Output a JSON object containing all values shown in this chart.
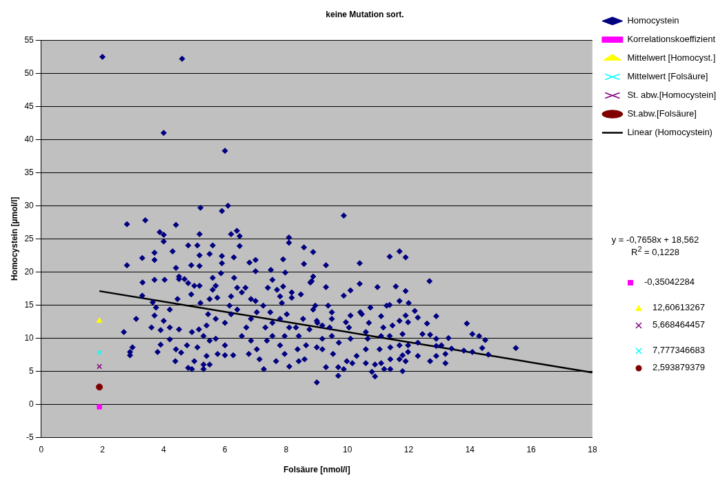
{
  "chart_data": {
    "type": "scatter",
    "title": "keine Mutation sort.",
    "xlabel": "Folsäure [nmol/l]",
    "ylabel": "Homocystein [µmol/l]",
    "xlim": [
      0,
      18
    ],
    "xticks": [
      0,
      2,
      4,
      6,
      8,
      10,
      12,
      14,
      16,
      18
    ],
    "ylim": [
      -5,
      55
    ],
    "yticks": [
      -5,
      0,
      5,
      10,
      15,
      20,
      25,
      30,
      35,
      40,
      45,
      50,
      55
    ],
    "grid": "y",
    "legend": "top right",
    "annotations": [
      "y = -0,7658x + 18,562",
      "R$^{2}$ = 0,1228",
      "-0,35042284",
      "12,60613267",
      "5,668464457",
      "7,777346683",
      "2,593879379"
    ],
    "series": [
      {
        "name": "Homocystein",
        "color": "#000080",
        "marker": "diamond",
        "x": [
          2.0,
          4.6,
          4.0,
          6.0,
          5.2,
          6.1,
          5.9,
          2.8,
          3.4,
          4.4,
          9.88,
          3.87,
          4.0,
          4.0,
          5.17,
          6.2,
          6.39,
          6.48,
          8.09,
          8.09,
          2.8,
          3.3,
          3.7,
          3.7,
          4.29,
          4.8,
          5.1,
          5.6,
          5.17,
          5.5,
          5.9,
          6.29,
          6.48,
          4.9,
          5.17,
          5.9,
          7.0,
          6.8,
          8.58,
          8.88,
          7.9,
          8.58,
          3.31,
          4.4,
          3.7,
          4.03,
          5.87,
          7.0,
          7.5,
          7.97,
          8.83,
          5.6,
          6.3,
          7.55,
          4.5,
          2.7,
          3.1,
          2.98,
          2.9,
          2.9,
          3.3,
          3.64,
          3.75,
          3.7,
          3.6,
          3.9,
          4.0,
          3.8,
          3.9,
          4.2,
          4.38,
          4.4,
          4.57,
          4.8,
          4.92,
          5.0,
          5.3,
          5.3,
          5.5,
          5.4,
          5.1,
          4.76,
          4.5,
          4.2,
          4.2,
          4.45,
          4.5,
          4.68,
          4.8,
          5.0,
          5.17,
          4.9,
          5.2,
          5.5,
          5.7,
          5.6,
          5.75,
          5.45,
          5.7,
          5.4,
          5.15,
          4.92,
          5.3,
          5.7,
          5.5,
          6.0,
          5.76,
          6.0,
          6.27,
          6.0,
          6.2,
          6.4,
          6.15,
          6.2,
          6.4,
          6.55,
          6.67,
          6.85,
          7.0,
          7.04,
          6.85,
          6.7,
          6.55,
          6.85,
          7.04,
          6.78,
          7.13,
          7.27,
          7.37,
          7.55,
          7.32,
          7.55,
          7.48,
          7.25,
          7.4,
          7.7,
          7.9,
          8.18,
          8.18,
          7.8,
          7.86,
          8.02,
          7.8,
          8.1,
          7.95,
          7.8,
          7.95,
          7.67,
          8.1,
          8.41,
          8.6,
          8.37,
          8.65,
          8.41,
          8.32,
          8.55,
          8.88,
          8.95,
          8.48,
          8.88,
          8.79,
          9.0,
          9.02,
          9.0,
          9.3,
          10.4,
          11.38,
          11.7,
          11.9,
          12.68,
          9.3,
          9.88,
          10.1,
          10.4,
          10.98,
          11.58,
          11.9,
          11.7,
          12.0,
          12.2,
          12.3,
          12.9,
          12.6,
          13.9,
          14.08,
          14.3,
          14.5,
          14.4,
          14.6,
          15.5,
          14.08,
          13.8,
          13.3,
          13.4,
          13.2,
          13.2,
          12.9,
          12.7,
          12.7,
          12.9,
          12.45,
          12.3,
          12.3,
          11.98,
          11.98,
          11.8,
          11.9,
          11.8,
          11.8,
          11.7,
          11.9,
          11.47,
          11.38,
          11.4,
          11.4,
          11.4,
          11.2,
          10.9,
          10.8,
          10.9,
          11.1,
          11.05,
          11.1,
          11.17,
          11.1,
          11.38,
          11.28,
          10.75,
          10.7,
          10.66,
          10.6,
          10.6,
          10.6,
          10.47,
          10.1,
          9.95,
          10.05,
          10.1,
          10.3,
          10.16,
          9.88,
          9.7,
          9.7,
          9.98,
          9.53,
          9.18,
          9.3,
          9.18,
          9.49,
          9.72,
          9.42,
          9.18,
          9.49,
          9.49,
          9.37,
          9.0,
          8.76,
          10.42,
          11.98,
          12.9,
          13.07,
          11.7,
          11.7
        ],
        "values": [
          52.5,
          52.2,
          41.0,
          38.3,
          29.7,
          30.0,
          29.2,
          27.2,
          27.8,
          27.1,
          28.5,
          26.0,
          25.6,
          24.6,
          25.7,
          25.7,
          26.2,
          25.4,
          25.2,
          24.4,
          21.0,
          22.1,
          22.9,
          21.8,
          23.1,
          24.0,
          24.0,
          24.0,
          22.5,
          22.7,
          22.4,
          22.2,
          23.9,
          21.0,
          20.9,
          21.3,
          21.8,
          21.4,
          23.7,
          23.0,
          21.9,
          21.2,
          18.4,
          20.6,
          18.8,
          18.8,
          19.8,
          20.1,
          20.3,
          19.9,
          18.6,
          19.1,
          19.1,
          18.8,
          19.3,
          10.9,
          12.9,
          8.6,
          7.4,
          7.9,
          16.4,
          15.4,
          14.6,
          13.4,
          11.6,
          11.2,
          12.6,
          7.9,
          9.0,
          9.8,
          6.5,
          8.3,
          7.8,
          5.5,
          5.3,
          6.5,
          5.3,
          6.0,
          6.0,
          7.3,
          8.6,
          8.9,
          11.3,
          11.6,
          14.3,
          15.9,
          18.9,
          18.9,
          18.3,
          17.9,
          17.9,
          16.6,
          15.3,
          15.9,
          17.9,
          17.3,
          16.1,
          13.6,
          12.9,
          11.9,
          11.3,
          10.9,
          10.3,
          9.9,
          9.6,
          8.9,
          7.6,
          7.4,
          7.4,
          12.3,
          13.6,
          14.3,
          14.9,
          16.3,
          17.6,
          16.9,
          17.6,
          15.9,
          15.6,
          13.9,
          12.9,
          11.6,
          10.3,
          9.6,
          8.3,
          7.6,
          6.8,
          5.3,
          9.6,
          10.3,
          11.6,
          12.3,
          13.9,
          14.9,
          17.6,
          17.3,
          17.8,
          16.9,
          16.1,
          16.3,
          15.3,
          13.6,
          12.9,
          11.6,
          10.3,
          8.9,
          7.6,
          6.5,
          5.7,
          6.5,
          6.8,
          8.3,
          8.9,
          10.3,
          11.6,
          12.9,
          14.3,
          14.9,
          16.6,
          19.3,
          18.4,
          3.3,
          12.3,
          8.6,
          21.0,
          21.3,
          22.3,
          23.1,
          22.2,
          18.6,
          17.7,
          16.4,
          17.2,
          18.2,
          17.7,
          17.8,
          17.1,
          15.6,
          15.3,
          14.1,
          13.1,
          13.3,
          12.2,
          12.2,
          10.6,
          10.3,
          9.7,
          8.5,
          7.5,
          8.5,
          7.9,
          8.1,
          10.0,
          8.4,
          7.6,
          6.2,
          9.9,
          10.5,
          6.5,
          7.3,
          10.6,
          9.3,
          7.3,
          8.9,
          7.9,
          7.4,
          6.5,
          5.0,
          10.6,
          12.6,
          13.4,
          11.9,
          10.3,
          8.6,
          6.8,
          5.3,
          5.3,
          4.2,
          4.9,
          6.0,
          6.2,
          8.3,
          10.3,
          11.6,
          13.3,
          15.0,
          14.9,
          14.6,
          12.3,
          9.9,
          8.3,
          6.2,
          10.9,
          13.6,
          13.4,
          12.4,
          11.6,
          9.9,
          7.3,
          6.2,
          5.3,
          4.3,
          5.6,
          6.5,
          7.6,
          8.3,
          5.6,
          9.9,
          10.3,
          9.3,
          11.6,
          11.9,
          12.9,
          13.9,
          14.9,
          12.6,
          11.3,
          13.9,
          12.4,
          8.8,
          8.9,
          8.9,
          6.8
        ]
      },
      {
        "name": "Korrelationskoeffizient",
        "color": "#ff00ff",
        "marker": "square",
        "x": [
          1.9
        ],
        "values": [
          -0.4
        ]
      },
      {
        "name": "Mittelwert [Homocyst.]",
        "color": "#ffff00",
        "marker": "triangle",
        "x": [
          1.9
        ],
        "values": [
          12.6
        ]
      },
      {
        "name": "Mittelwert [Folsäure]",
        "color": "#00ffff",
        "marker": "cross",
        "x": [
          1.9
        ],
        "values": [
          7.8
        ]
      },
      {
        "name": "St. abw.[Homocystein]",
        "color": "#800080",
        "marker": "cross",
        "x": [
          1.9
        ],
        "values": [
          5.7
        ]
      },
      {
        "name": "St.abw.[Folsäure]",
        "color": "#800000",
        "marker": "circle",
        "x": [
          1.9
        ],
        "values": [
          2.6
        ]
      },
      {
        "name": "Linear (Homocystein)",
        "type": "line",
        "color": "#000000",
        "marker": "none",
        "line_style": "solid",
        "x": [
          1.9,
          18
        ],
        "values": [
          17.1,
          4.8
        ]
      }
    ]
  }
}
